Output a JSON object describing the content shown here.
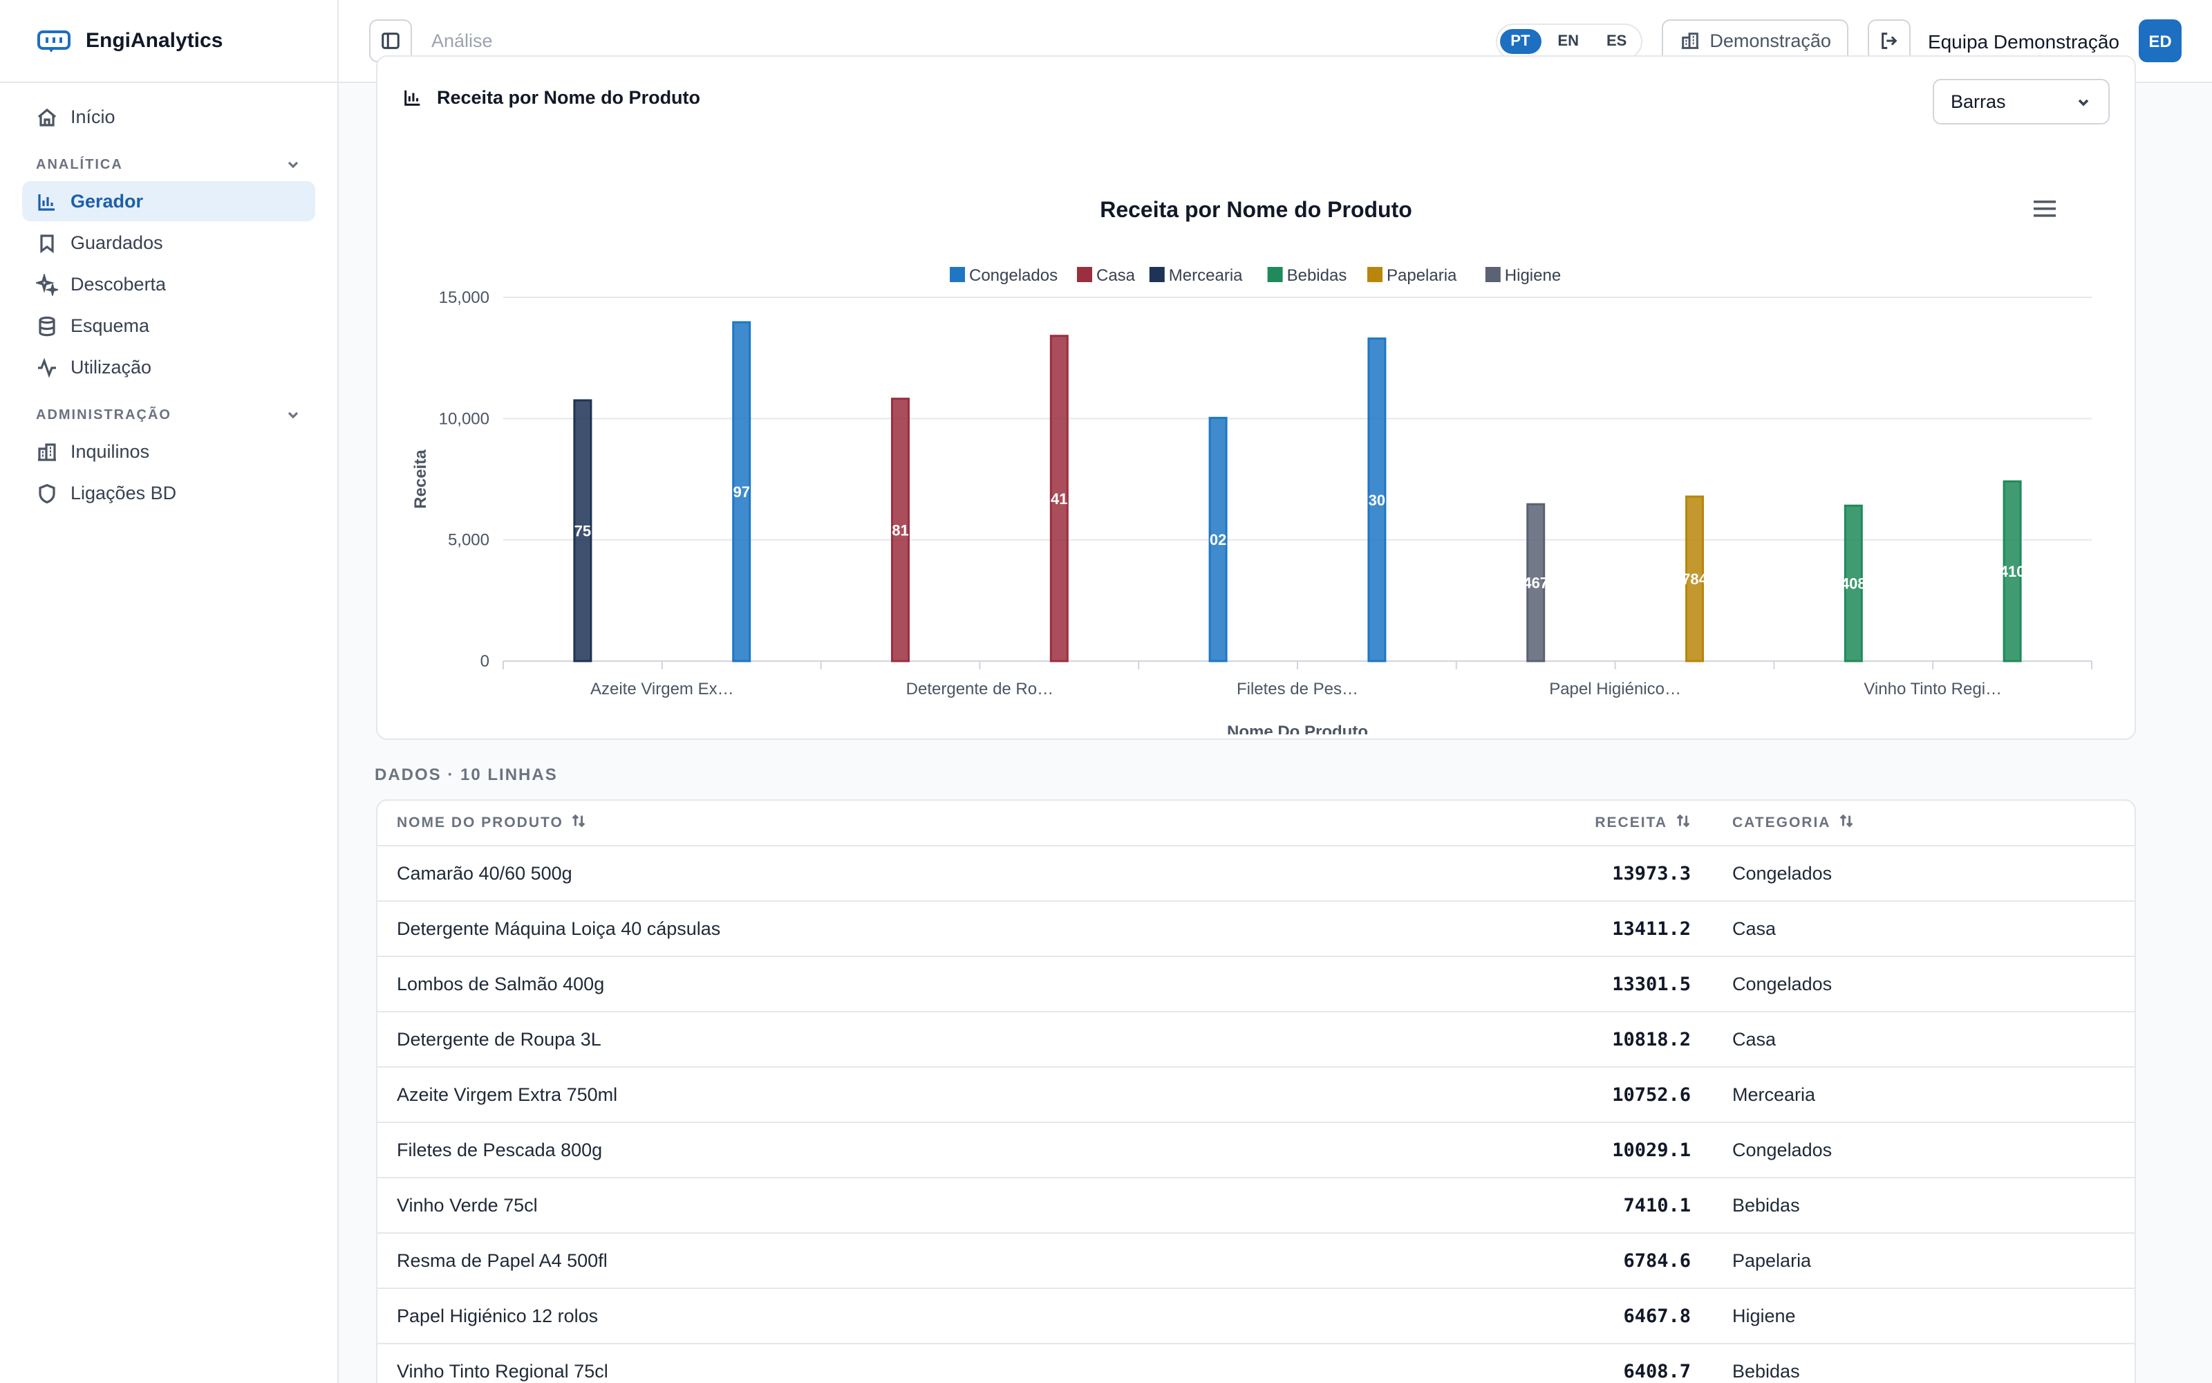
{
  "brand": {
    "name": "EngiAnalytics"
  },
  "sidebar": {
    "home": "Início",
    "section_analytics": "ANALÍTICA",
    "analytics_items": [
      {
        "label": "Gerador",
        "icon": "bar-chart-icon",
        "active": true
      },
      {
        "label": "Guardados",
        "icon": "bookmark-icon"
      },
      {
        "label": "Descoberta",
        "icon": "sparkles-icon"
      },
      {
        "label": "Esquema",
        "icon": "database-icon"
      },
      {
        "label": "Utilização",
        "icon": "activity-icon"
      }
    ],
    "section_admin": "ADMINISTRAÇÃO",
    "admin_items": [
      {
        "label": "Inquilinos",
        "icon": "building-icon"
      },
      {
        "label": "Ligações BD",
        "icon": "shield-icon"
      }
    ]
  },
  "topbar": {
    "breadcrumb": "Análise",
    "languages": [
      "PT",
      "EN",
      "ES"
    ],
    "active_language": "PT",
    "tenant": "Demonstração",
    "user": "Equipa Demonstração",
    "avatar_initials": "ED"
  },
  "chart_card": {
    "title": "Receita por Nome do Produto",
    "chart_type_select": "Barras"
  },
  "chart_data": {
    "type": "bar",
    "title": "Receita por Nome do Produto",
    "xlabel": "Nome Do Produto",
    "ylabel": "Receita",
    "ylim": [
      0,
      15000
    ],
    "yticks": [
      "0",
      "5,000",
      "10,000",
      "15,000"
    ],
    "xticks": [
      "Azeite Virgem Ex…",
      "Detergente de Ro…",
      "Filetes de Pes…",
      "Papel Higiénico…",
      "Vinho Tinto Regi…"
    ],
    "legend_position": "top",
    "grid": true,
    "series": [
      {
        "name": "Congelados",
        "color": "#1f77c4"
      },
      {
        "name": "Casa",
        "color": "#9b2f3f"
      },
      {
        "name": "Mercearia",
        "color": "#1e3356"
      },
      {
        "name": "Bebidas",
        "color": "#1f8a5b"
      },
      {
        "name": "Papelaria",
        "color": "#b8860b"
      },
      {
        "name": "Higiene",
        "color": "#5b6274"
      }
    ],
    "bars": [
      {
        "series": "Mercearia",
        "value": 10752.6,
        "label": "75"
      },
      {
        "series": "Congelados",
        "value": 13973.3,
        "label": "97"
      },
      {
        "series": "Casa",
        "value": 10818.2,
        "label": "81"
      },
      {
        "series": "Casa",
        "value": 13411.2,
        "label": "41"
      },
      {
        "series": "Congelados",
        "value": 10029.1,
        "label": "02"
      },
      {
        "series": "Congelados",
        "value": 13301.5,
        "label": "30"
      },
      {
        "series": "Higiene",
        "value": 6467.8,
        "label": "467"
      },
      {
        "series": "Papelaria",
        "value": 6784.6,
        "label": "784"
      },
      {
        "series": "Bebidas",
        "value": 6408.7,
        "label": "408"
      },
      {
        "series": "Bebidas",
        "value": 7410.1,
        "label": "410"
      }
    ]
  },
  "table": {
    "caption": "DADOS · 10 LINHAS",
    "columns": [
      "NOME DO PRODUTO",
      "RECEITA",
      "CATEGORIA"
    ],
    "rows": [
      {
        "name": "Camarão 40/60 500g",
        "revenue": "13973.3",
        "category": "Congelados"
      },
      {
        "name": "Detergente Máquina Loiça 40 cápsulas",
        "revenue": "13411.2",
        "category": "Casa"
      },
      {
        "name": "Lombos de Salmão 400g",
        "revenue": "13301.5",
        "category": "Congelados"
      },
      {
        "name": "Detergente de Roupa 3L",
        "revenue": "10818.2",
        "category": "Casa"
      },
      {
        "name": "Azeite Virgem Extra 750ml",
        "revenue": "10752.6",
        "category": "Mercearia"
      },
      {
        "name": "Filetes de Pescada 800g",
        "revenue": "10029.1",
        "category": "Congelados"
      },
      {
        "name": "Vinho Verde 75cl",
        "revenue": "7410.1",
        "category": "Bebidas"
      },
      {
        "name": "Resma de Papel A4 500fl",
        "revenue": "6784.6",
        "category": "Papelaria"
      },
      {
        "name": "Papel Higiénico 12 rolos",
        "revenue": "6467.8",
        "category": "Higiene"
      },
      {
        "name": "Vinho Tinto Regional 75cl",
        "revenue": "6408.7",
        "category": "Bebidas"
      }
    ]
  }
}
